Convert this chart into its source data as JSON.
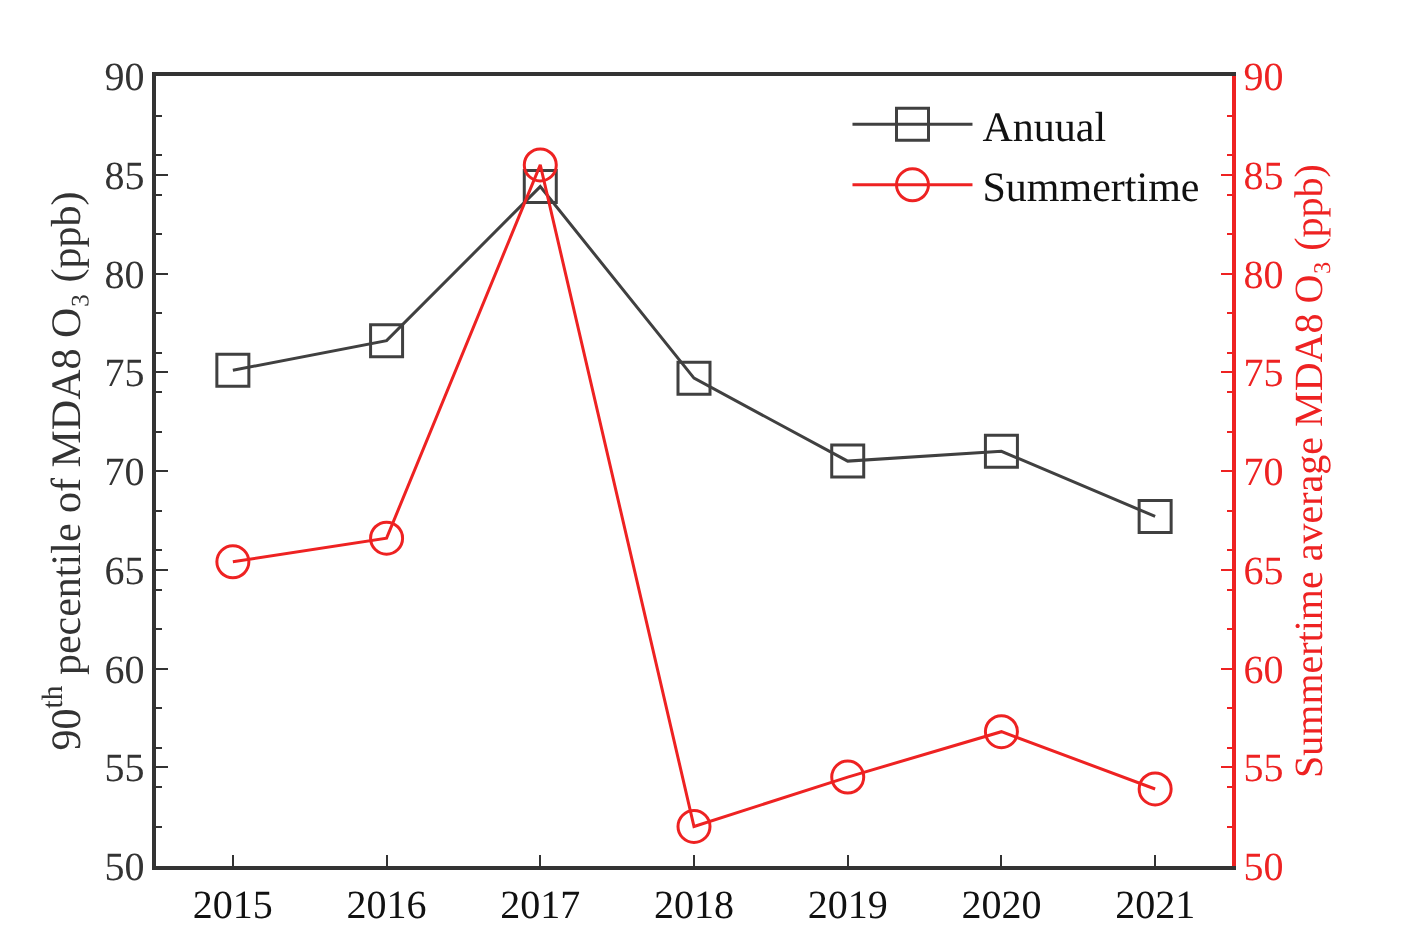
{
  "chart_data": {
    "type": "line",
    "categories": [
      "2015",
      "2016",
      "2017",
      "2018",
      "2019",
      "2020",
      "2021"
    ],
    "ylabel": "90$^{th}$ pecentile of MDA8 O₃ (ppb)",
    "y2label": "Summertime average MDA8 O₃ (ppb)",
    "ylim": [
      50,
      90
    ],
    "yticks": [
      50,
      55,
      60,
      65,
      70,
      75,
      80,
      85,
      90
    ],
    "y2lim": [
      50,
      90
    ],
    "y2ticks": [
      50,
      55,
      60,
      65,
      70,
      75,
      80,
      85,
      90
    ],
    "legend": "top right",
    "grid": false,
    "series": [
      {
        "name": "Anuual",
        "color": "#404040",
        "marker": "square",
        "values": [
          75.1,
          76.6,
          84.4,
          74.7,
          70.5,
          71.0,
          67.7
        ]
      },
      {
        "name": "Summertime",
        "color": "#ee2222",
        "marker": "circle",
        "axis": "y2",
        "values": [
          65.4,
          66.6,
          85.5,
          52.0,
          54.5,
          56.8,
          53.9
        ]
      }
    ]
  }
}
